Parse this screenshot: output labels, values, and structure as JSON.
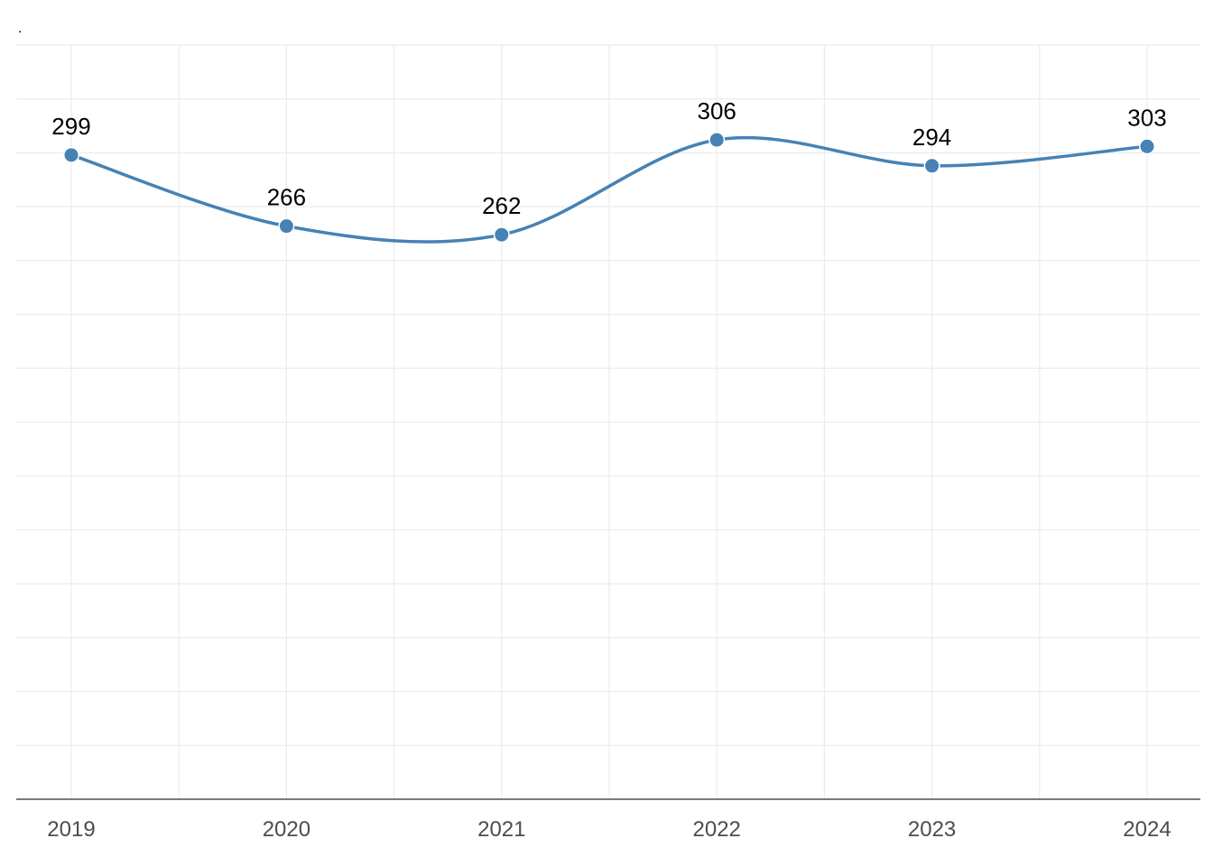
{
  "chart_title": ".",
  "chart_data": {
    "type": "line",
    "title": ".",
    "xlabel": "",
    "ylabel": "",
    "x": [
      "2019",
      "2020",
      "2021",
      "2022",
      "2023",
      "2024"
    ],
    "series": [
      {
        "values": [
          299,
          266,
          262,
          306,
          294,
          303
        ]
      }
    ],
    "data_labels": [
      "299",
      "266",
      "262",
      "306",
      "294",
      "303"
    ],
    "ylim": [
      0,
      350
    ],
    "grid": true,
    "smooth": true,
    "line_color": "#4682b4",
    "marker_color": "#4682b4"
  }
}
